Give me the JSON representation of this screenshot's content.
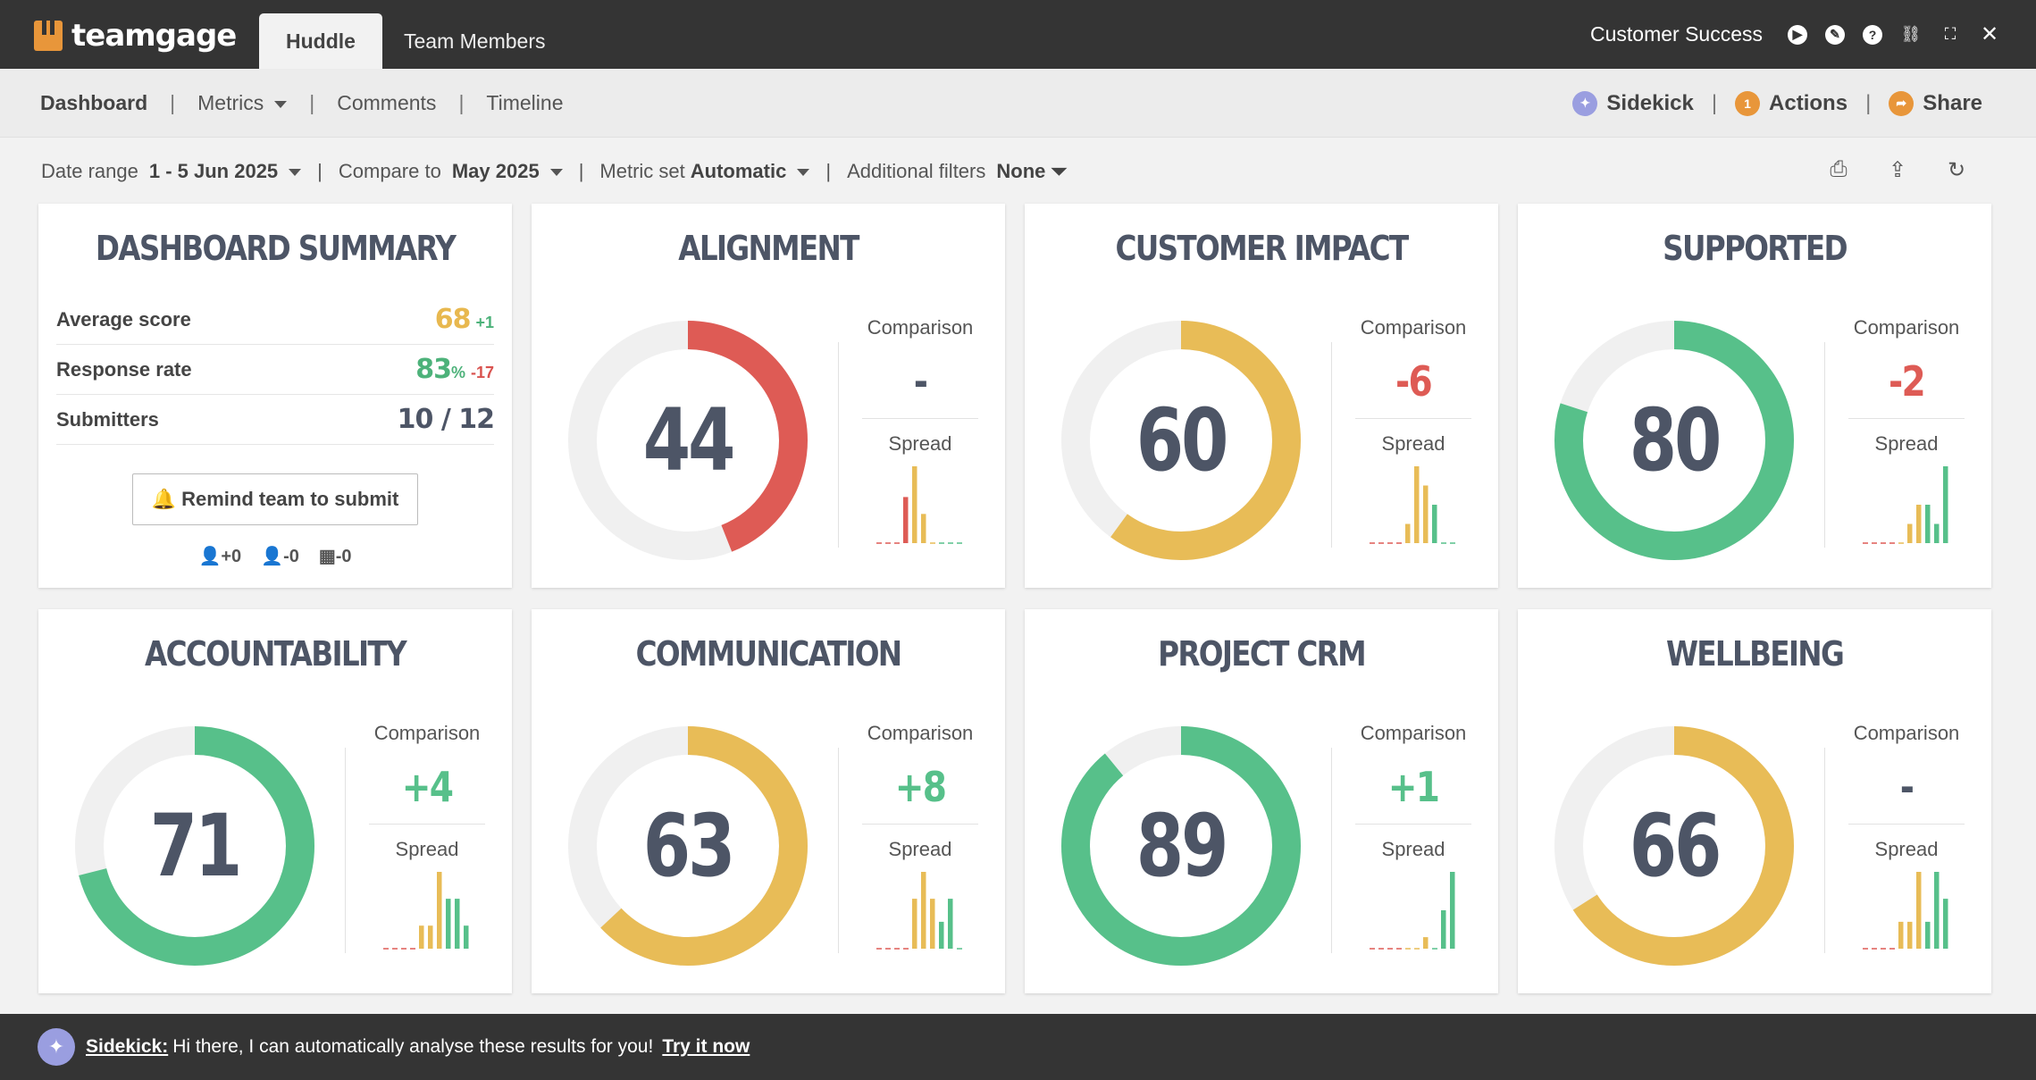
{
  "app": {
    "brand": "teamgage",
    "tabs": [
      "Huddle",
      "Team Members"
    ],
    "team_name": "Customer Success"
  },
  "nav": {
    "dashboard": "Dashboard",
    "metrics": "Metrics",
    "comments": "Comments",
    "timeline": "Timeline",
    "sidekick": "Sidekick",
    "actions": "Actions",
    "actions_count": "1",
    "share": "Share",
    "separator": "|"
  },
  "filters": {
    "date_range_label": "Date range",
    "date_range_value": "1 - 5 Jun 2025",
    "compare_label": "Compare to",
    "compare_value": "May 2025",
    "metric_set_label": "Metric set",
    "metric_set_value": "Automatic",
    "additional_label": "Additional filters",
    "additional_value": "None"
  },
  "summary": {
    "title": "DASHBOARD SUMMARY",
    "rows": [
      {
        "label": "Average score",
        "value": "68",
        "delta": "+1",
        "value_color": "#e8b84f",
        "delta_color": "#4db27a"
      },
      {
        "label": "Response rate",
        "value": "83",
        "unit": "%",
        "delta": "-17",
        "value_color": "#4db27a",
        "delta_color": "#d9534f"
      },
      {
        "label": "Submitters",
        "value": "10 / 12",
        "delta": "",
        "value_color": "#4d5566",
        "delta_color": "#4d5566"
      }
    ],
    "remind_button": "Remind team to submit",
    "counts": [
      "+0",
      "-0",
      "-0"
    ]
  },
  "labels": {
    "comparison": "Comparison",
    "spread": "Spread"
  },
  "colors": {
    "red": "#de5b55",
    "yellow": "#e8bc57",
    "green": "#57c08a",
    "track": "#f0f0f0",
    "text_dark": "#4d5566"
  },
  "metrics": [
    {
      "title": "ALIGNMENT",
      "score": 44,
      "comparison": "-",
      "comparison_color": "#4d5566",
      "color": "red",
      "spread": [
        0,
        0,
        0,
        0.6,
        1,
        0.38,
        0,
        0,
        0,
        0
      ]
    },
    {
      "title": "CUSTOMER IMPACT",
      "score": 60,
      "comparison": "-6",
      "comparison_color": "#de5b55",
      "color": "yellow",
      "spread": [
        0,
        0,
        0,
        0,
        0.25,
        1,
        0.75,
        0.5,
        0,
        0
      ]
    },
    {
      "title": "SUPPORTED",
      "score": 80,
      "comparison": "-2",
      "comparison_color": "#de5b55",
      "color": "green",
      "spread": [
        0,
        0,
        0,
        0,
        0,
        0.25,
        0.5,
        0.5,
        0.25,
        1
      ]
    },
    {
      "title": "ACCOUNTABILITY",
      "score": 71,
      "comparison": "+4",
      "comparison_color": "#57c08a",
      "color": "green",
      "spread": [
        0,
        0,
        0,
        0,
        0.3,
        0.3,
        1,
        0.65,
        0.65,
        0.3
      ]
    },
    {
      "title": "COMMUNICATION",
      "score": 63,
      "comparison": "+8",
      "comparison_color": "#57c08a",
      "color": "yellow",
      "spread": [
        0,
        0,
        0,
        0,
        0.65,
        1,
        0.65,
        0.35,
        0.65,
        0
      ]
    },
    {
      "title": "PROJECT CRM",
      "score": 89,
      "comparison": "+1",
      "comparison_color": "#57c08a",
      "color": "green",
      "spread": [
        0,
        0,
        0,
        0,
        0,
        0,
        0.15,
        0,
        0.5,
        1
      ]
    },
    {
      "title": "WELLBEING",
      "score": 66,
      "comparison": "-",
      "comparison_color": "#4d5566",
      "color": "yellow",
      "spread": [
        0,
        0,
        0,
        0,
        0.35,
        0.35,
        1,
        0.35,
        1,
        0.65
      ]
    }
  ],
  "bottom": {
    "name": "Sidekick:",
    "message": "Hi there, I can automatically analyse these results for you!",
    "cta": "Try it now"
  }
}
